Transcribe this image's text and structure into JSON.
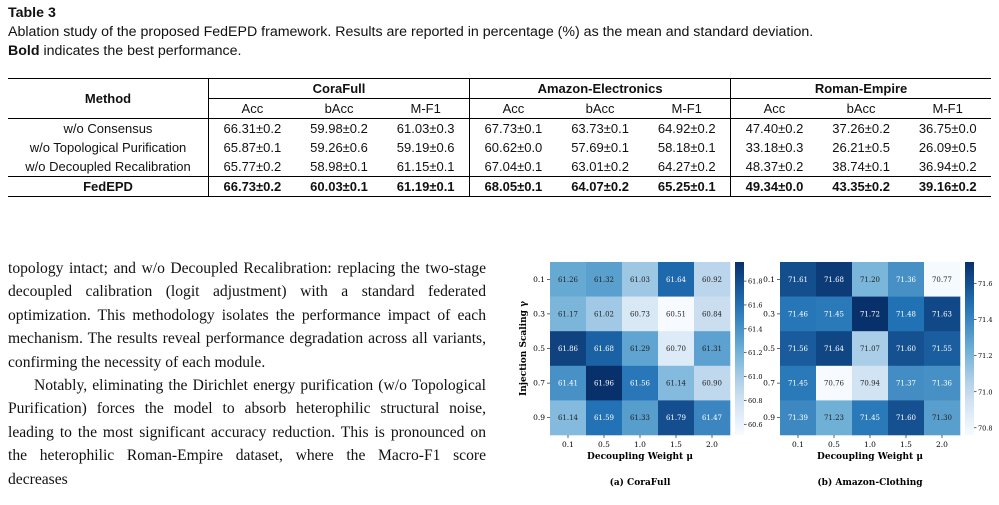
{
  "caption": {
    "label": "Table 3",
    "text": "Ablation study of the proposed FedEPD framework. Results are reported in percentage (%) as the mean and standard deviation.",
    "note_bold": "Bold",
    "note": "indicates the best performance."
  },
  "table": {
    "method_header": "Method",
    "groups": [
      {
        "name": "CoraFull",
        "columns": [
          "Acc",
          "bAcc",
          "M-F1"
        ]
      },
      {
        "name": "Amazon-Electronics",
        "columns": [
          "Acc",
          "bAcc",
          "M-F1"
        ]
      },
      {
        "name": "Roman-Empire",
        "columns": [
          "Acc",
          "bAcc",
          "M-F1"
        ]
      }
    ],
    "rows": [
      [
        "w/o Consensus",
        "66.31±0.2",
        "59.98±0.2",
        "61.03±0.3",
        "67.73±0.1",
        "63.73±0.1",
        "64.92±0.2",
        "47.40±0.2",
        "37.26±0.2",
        "36.75±0.0"
      ],
      [
        "w/o Topological Purification",
        "65.87±0.1",
        "59.26±0.6",
        "59.19±0.6",
        "60.62±0.0",
        "57.69±0.1",
        "58.18±0.1",
        "33.18±0.3",
        "26.21±0.5",
        "26.09±0.5"
      ],
      [
        "w/o Decoupled Recalibration",
        "65.77±0.2",
        "58.98±0.1",
        "61.15±0.1",
        "67.04±0.1",
        "63.01±0.2",
        "64.27±0.2",
        "48.37±0.2",
        "38.74±0.1",
        "36.94±0.2"
      ],
      [
        "FedEPD",
        "66.73±0.2",
        "60.03±0.1",
        "61.19±0.1",
        "68.05±0.1",
        "64.07±0.2",
        "65.25±0.1",
        "49.34±0.0",
        "43.35±0.2",
        "39.16±0.2"
      ]
    ]
  },
  "body": {
    "paragraphs": [
      "topology intact; and w/o Decoupled Recalibration: replacing the two-stage decoupled calibration (logit adjustment) with a standard federated optimization. This methodology isolates the performance impact of each mechanism. The results reveal performance degradation across all variants, confirming the necessity of each module.",
      "Notably, eliminating the Dirichlet energy purification (w/o Topological Purification) forces the model to absorb heterophilic structural noise, leading to the most significant accuracy reduction. This is pronounced on the heterophilic Roman-Empire dataset, where the Macro-F1 score decreases"
    ]
  },
  "figure": {
    "panels": [
      {
        "caption": "(a) CoraFull",
        "y_label": "Injection Scaling γ",
        "x_label": "Decoupling Weight μ",
        "x_ticks": [
          "0.1",
          "0.5",
          "1.0",
          "1.5",
          "2.0"
        ],
        "y_ticks": [
          "0.1",
          "0.3",
          "0.5",
          "0.7",
          "0.9"
        ],
        "cells": [
          [
            "61.26",
            "61.32",
            "61.03",
            "61.64",
            "60.92"
          ],
          [
            "61.17",
            "61.02",
            "60.73",
            "60.51",
            "60.84"
          ],
          [
            "61.86",
            "61.68",
            "61.29",
            "60.70",
            "61.31"
          ],
          [
            "61.41",
            "61.96",
            "61.56",
            "61.14",
            "60.90"
          ],
          [
            "61.14",
            "61.59",
            "61.33",
            "61.79",
            "61.47"
          ]
        ],
        "colorbar_ticks": [
          "61.8",
          "61.6",
          "61.4",
          "61.2",
          "61.0",
          "60.8",
          "60.6"
        ]
      },
      {
        "caption": "(b) Amazon-Clothing",
        "y_label": "Injection Scaling γ",
        "x_label": "Decoupling Weight μ",
        "x_ticks": [
          "0.1",
          "0.5",
          "1.0",
          "1.5",
          "2.0"
        ],
        "y_ticks": [
          "0.1",
          "0.3",
          "0.5",
          "0.7",
          "0.9"
        ],
        "cells": [
          [
            "71.61",
            "71.68",
            "71.20",
            "71.36",
            "70.77"
          ],
          [
            "71.46",
            "71.45",
            "71.72",
            "71.48",
            "71.63"
          ],
          [
            "71.56",
            "71.64",
            "71.07",
            "71.60",
            "71.55"
          ],
          [
            "71.45",
            "70.76",
            "70.94",
            "71.37",
            "71.36"
          ],
          [
            "71.39",
            "71.23",
            "71.45",
            "71.60",
            "71.30"
          ]
        ],
        "colorbar_ticks": [
          "71.6",
          "71.4",
          "71.2",
          "71.0",
          "70.8"
        ]
      }
    ]
  }
}
